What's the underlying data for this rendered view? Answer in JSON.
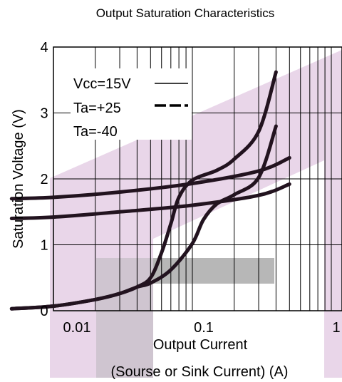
{
  "chart_data": {
    "type": "line",
    "title": "Output Saturation Characteristics",
    "xlabel": "Output Current",
    "xlabel_sub": "(Sourse or Sink Current)  (A)",
    "ylabel": "Saturation Voltage (V)",
    "x_scale": "log",
    "xlim": [
      0.005,
      1
    ],
    "ylim": [
      0,
      4
    ],
    "x_ticks": [
      "0.01",
      "0.1",
      "1"
    ],
    "y_ticks": [
      "0",
      "1",
      "2",
      "3",
      "4"
    ],
    "grid": true,
    "legend": {
      "placement": "top-left",
      "entries": [
        {
          "label": "Vcc=15V",
          "style": "solid"
        },
        {
          "label": "Ta=+25",
          "style": "dashed"
        },
        {
          "label": "Ta=-40",
          "style": "none"
        }
      ]
    },
    "series": [
      {
        "x": [
          0.005,
          0.01,
          0.03,
          0.1,
          0.3,
          0.5
        ],
        "y": [
          1.7,
          1.72,
          1.8,
          1.93,
          2.12,
          2.32
        ]
      },
      {
        "x": [
          0.005,
          0.01,
          0.03,
          0.1,
          0.3,
          0.5
        ],
        "y": [
          1.4,
          1.42,
          1.5,
          1.6,
          1.75,
          1.92
        ]
      },
      {
        "x": [
          0.005,
          0.01,
          0.02,
          0.03,
          0.04,
          0.05,
          0.06,
          0.07,
          0.08,
          0.1,
          0.15,
          0.2,
          0.3,
          0.4
        ],
        "y": [
          0.03,
          0.07,
          0.17,
          0.26,
          0.36,
          0.5,
          0.88,
          1.32,
          1.72,
          1.98,
          2.13,
          2.3,
          2.72,
          3.62
        ]
      },
      {
        "x": [
          0.005,
          0.01,
          0.02,
          0.03,
          0.04,
          0.05,
          0.07,
          0.1,
          0.12,
          0.15,
          0.2,
          0.3,
          0.4
        ],
        "y": [
          0.03,
          0.07,
          0.17,
          0.26,
          0.36,
          0.42,
          0.62,
          1.02,
          1.38,
          1.62,
          1.76,
          2.02,
          2.8
        ]
      }
    ]
  }
}
